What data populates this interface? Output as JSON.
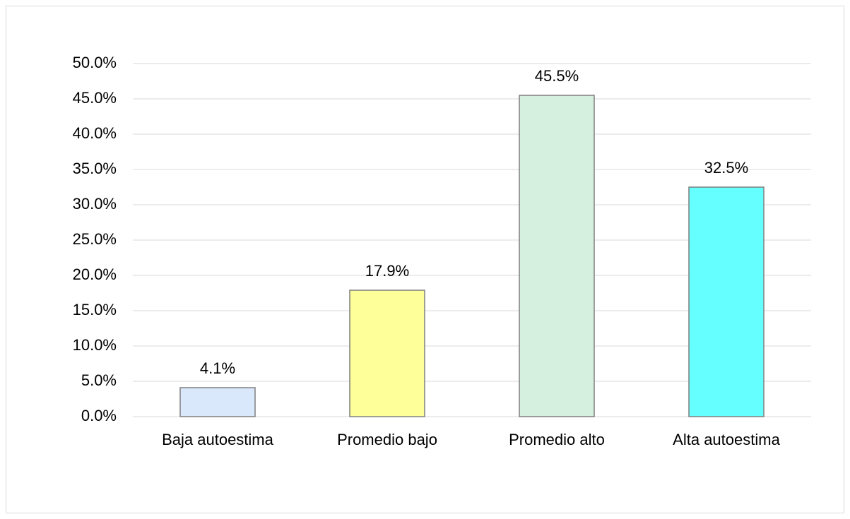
{
  "chart_data": {
    "type": "bar",
    "categories": [
      "Baja autoestima",
      "Promedio bajo",
      "Promedio alto",
      "Alta autoestima"
    ],
    "values": [
      4.1,
      17.9,
      45.5,
      32.5
    ],
    "value_labels": [
      "4.1%",
      "17.9%",
      "45.5%",
      "32.5%"
    ],
    "colors": [
      "#dae8fc",
      "#ffff99",
      "#d5f0de",
      "#66ffff"
    ],
    "ylim": [
      0,
      50
    ],
    "yticks": [
      {
        "value": 0,
        "label": "0.0%"
      },
      {
        "value": 5,
        "label": "5.0%"
      },
      {
        "value": 10,
        "label": "10.0%"
      },
      {
        "value": 15,
        "label": "15.0%"
      },
      {
        "value": 20,
        "label": "20.0%"
      },
      {
        "value": 25,
        "label": "25.0%"
      },
      {
        "value": 30,
        "label": "30.0%"
      },
      {
        "value": 35,
        "label": "35.0%"
      },
      {
        "value": 40,
        "label": "40.0%"
      },
      {
        "value": 45,
        "label": "45.0%"
      },
      {
        "value": 50,
        "label": "50.0%"
      }
    ],
    "grid": true
  }
}
